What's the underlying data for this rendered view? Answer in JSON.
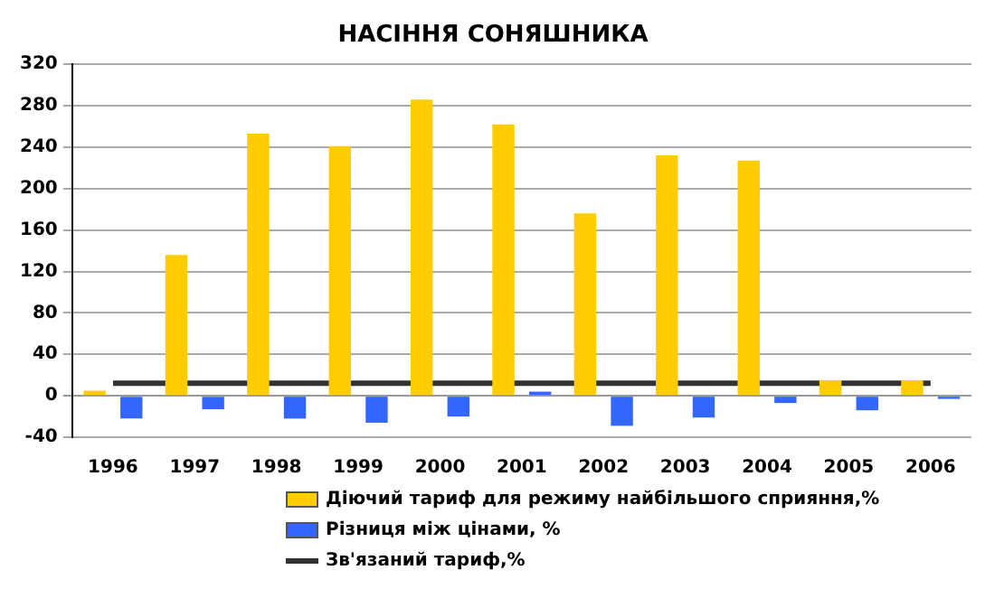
{
  "chart_data": {
    "type": "bar",
    "title": "НАСІННЯ СОНЯШНИКА",
    "categories": [
      "1996",
      "1997",
      "1998",
      "1999",
      "2000",
      "2001",
      "2002",
      "2003",
      "2004",
      "2005",
      "2006"
    ],
    "series": [
      {
        "name": "Діючий тариф для режиму найбільшого сприяння,%",
        "color": "#ffcc00",
        "values": [
          5,
          136,
          253,
          241,
          286,
          262,
          176,
          232,
          227,
          15,
          15
        ]
      },
      {
        "name": "Різниця між цінами, %",
        "color": "#3366ff",
        "values": [
          -22,
          -13,
          -22,
          -26,
          -20,
          4,
          -29,
          -21,
          -7,
          -14,
          -3
        ]
      },
      {
        "name": "Зв'язаний тариф,%",
        "type": "line",
        "color": "#333333",
        "values": [
          12,
          12,
          12,
          12,
          12,
          12,
          12,
          12,
          12,
          12,
          12
        ]
      }
    ],
    "ylim": [
      -40,
      320
    ],
    "yticks": [
      -40,
      0,
      40,
      80,
      120,
      160,
      200,
      240,
      280,
      320
    ],
    "grid": "y",
    "legend": "bottom",
    "marker": "none",
    "line_style": "solid"
  }
}
